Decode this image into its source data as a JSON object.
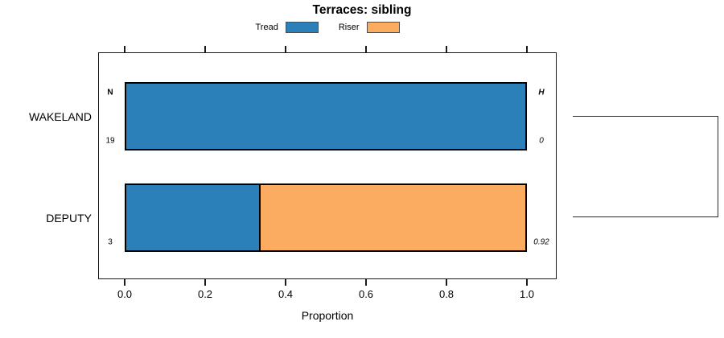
{
  "title": "Terraces: sibling",
  "legend": [
    {
      "label": "Tread",
      "color": "#2C80B9"
    },
    {
      "label": "Riser",
      "color": "#FBAC61"
    }
  ],
  "x_axis": {
    "label": "Proportion",
    "ticks": [
      "0.0",
      "0.2",
      "0.4",
      "0.6",
      "0.8",
      "1.0"
    ],
    "tick_values": [
      0.0,
      0.2,
      0.4,
      0.6,
      0.8,
      1.0
    ],
    "range": [
      0.0,
      1.0
    ]
  },
  "col_headers": {
    "n": "N",
    "h": "H"
  },
  "chart_data": {
    "type": "bar",
    "orientation": "horizontal_stacked",
    "title": "Terraces: sibling",
    "xlabel": "Proportion",
    "xlim": [
      0.0,
      1.0
    ],
    "grid": false,
    "legend_position": "top",
    "categories": [
      "WAKELAND",
      "DEPUTY"
    ],
    "series": [
      {
        "name": "Tread",
        "color": "#2C80B9",
        "values": [
          1.0,
          0.333
        ]
      },
      {
        "name": "Riser",
        "color": "#FBAC61",
        "values": [
          0.0,
          0.667
        ]
      }
    ],
    "row_annotations": [
      {
        "category": "WAKELAND",
        "N": "19",
        "H": "0"
      },
      {
        "category": "DEPUTY",
        "N": "3",
        "H": "0.92"
      }
    ],
    "right_marginal": "dendrogram_bracket_joining_both_rows"
  }
}
